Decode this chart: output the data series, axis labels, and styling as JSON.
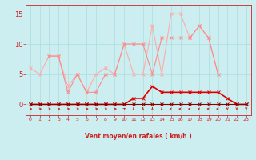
{
  "x": [
    0,
    1,
    2,
    3,
    4,
    5,
    6,
    7,
    8,
    9,
    10,
    11,
    12,
    13,
    14,
    15,
    16,
    17,
    18,
    19,
    20,
    21,
    22,
    23
  ],
  "line1_y": [
    6,
    5,
    8,
    8,
    3,
    5,
    2,
    5,
    6,
    5,
    10,
    5,
    5,
    13,
    5,
    15,
    15,
    11,
    13,
    11,
    5,
    null,
    null,
    null
  ],
  "line2_y": [
    null,
    null,
    8,
    8,
    2,
    5,
    2,
    2,
    5,
    5,
    10,
    10,
    10,
    5,
    11,
    11,
    11,
    11,
    13,
    11,
    5,
    null,
    null,
    null
  ],
  "line3_y": [
    0,
    0,
    0,
    0,
    0,
    0,
    0,
    0,
    0,
    0,
    0,
    1,
    1,
    3,
    2,
    2,
    2,
    2,
    2,
    2,
    2,
    1,
    0,
    0
  ],
  "line4_y": [
    0,
    0,
    0,
    0,
    0,
    0,
    0,
    0,
    0,
    0,
    0,
    0,
    0,
    0,
    0,
    0,
    0,
    0,
    0,
    0,
    0,
    0,
    0,
    0
  ],
  "line1_color": "#ffaaaa",
  "line2_color": "#ff8888",
  "line3_color": "#dd0000",
  "line4_color": "#880000",
  "bg_color": "#cceef0",
  "grid_color": "#aadddd",
  "text_color": "#cc2222",
  "xlabel": "Vent moyen/en rafales ( km/h )",
  "ylim": [
    -1.8,
    16.5
  ],
  "xlim": [
    -0.5,
    23.5
  ],
  "yticks": [
    0,
    5,
    10,
    15
  ],
  "xticks": [
    0,
    1,
    2,
    3,
    4,
    5,
    6,
    7,
    8,
    9,
    10,
    11,
    12,
    13,
    14,
    15,
    16,
    17,
    18,
    19,
    20,
    21,
    22,
    23
  ],
  "arrow_angles_deg": [
    90,
    90,
    90,
    90,
    90,
    90,
    90,
    90,
    90,
    90,
    45,
    0,
    0,
    0,
    0,
    270,
    270,
    270,
    270,
    270,
    270,
    180,
    180,
    180
  ]
}
